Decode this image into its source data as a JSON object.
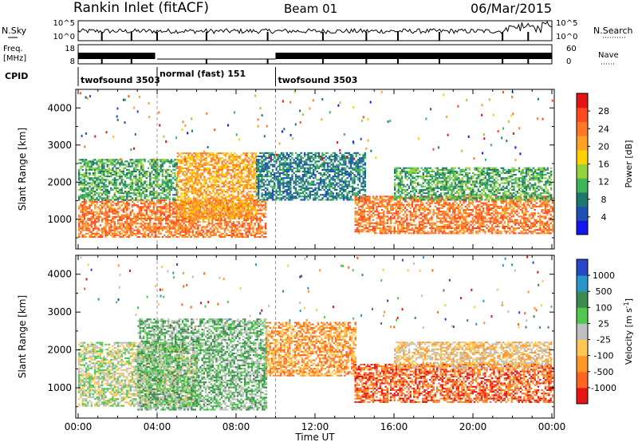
{
  "header": {
    "title": "Rankin Inlet (fitACF)",
    "beam": "Beam 01",
    "date": "06/Mar/2015"
  },
  "noise_panel": {
    "left_label": "N.Sky",
    "right_label": "N.Search",
    "left_ticks": [
      "10^5",
      "10^0"
    ],
    "right_ticks": [
      "10^5",
      "10^0"
    ]
  },
  "freq_panel": {
    "left_label_line1": "Freq.",
    "left_label_line2": "[MHz]",
    "right_label": "Nave",
    "left_ticks": [
      "18",
      "8"
    ],
    "right_ticks": [
      "60",
      "0"
    ]
  },
  "cpid_panel": {
    "label": "CPID",
    "segments": [
      {
        "name": "twofsound 3503",
        "start_hour": 0.0,
        "end_hour": 4.0
      },
      {
        "name": "normal (fast) 151",
        "start_hour": 4.0,
        "end_hour": 10.0
      },
      {
        "name": "twofsound 3503",
        "start_hour": 10.0,
        "end_hour": 24.0
      }
    ]
  },
  "chart_data": [
    {
      "type": "heatmap",
      "name": "power",
      "ylabel": "Slant Range [km]",
      "xlabel": "",
      "x_range_hours": [
        0,
        24
      ],
      "ylim": [
        200,
        4500
      ],
      "yticks": [
        1000,
        2000,
        3000,
        4000
      ],
      "colorbar": {
        "label": "Power [dB]",
        "ticks": [
          4,
          8,
          12,
          16,
          20,
          24,
          28
        ],
        "range": [
          0,
          32
        ],
        "colors": [
          "#1414f0",
          "#1e50b4",
          "#1e7870",
          "#3cb45a",
          "#96d23c",
          "#ffd200",
          "#ffa028",
          "#ff7828",
          "#ff4a1e",
          "#e61414"
        ]
      },
      "regions": [
        {
          "t0": 0.0,
          "t1": 9.5,
          "r0": 500,
          "r1": 1500,
          "level": 24
        },
        {
          "t0": 0.0,
          "t1": 5.0,
          "r0": 1500,
          "r1": 2600,
          "level": 12
        },
        {
          "t0": 5.0,
          "t1": 9.0,
          "r0": 1000,
          "r1": 2800,
          "level": 20
        },
        {
          "t0": 9.0,
          "t1": 14.5,
          "r0": 1500,
          "r1": 2800,
          "level": 8
        },
        {
          "t0": 14.0,
          "t1": 24.0,
          "r0": 600,
          "r1": 1600,
          "level": 24
        },
        {
          "t0": 16.0,
          "t1": 24.0,
          "r0": 1500,
          "r1": 2400,
          "level": 12
        }
      ]
    },
    {
      "type": "heatmap",
      "name": "velocity",
      "ylabel": "Slant Range [km]",
      "xlabel": "Time UT",
      "xticks": [
        "00:00",
        "04:00",
        "08:00",
        "12:00",
        "16:00",
        "20:00",
        "00:00"
      ],
      "x_range_hours": [
        0,
        24
      ],
      "ylim": [
        200,
        4500
      ],
      "yticks": [
        1000,
        2000,
        3000,
        4000
      ],
      "colorbar": {
        "label": "Velocity [m s^-1]",
        "ticks": [
          "1000",
          "500",
          "100",
          "25",
          "-25",
          "-100",
          "-500",
          "-1000"
        ],
        "colors": [
          "#2846c8",
          "#2896c8",
          "#3c8c50",
          "#50c850",
          "#c0c0c0",
          "#ffc850",
          "#ff9628",
          "#ff6420",
          "#e61414"
        ]
      },
      "regions": [
        {
          "t0": 0.0,
          "t1": 6.0,
          "r0": 500,
          "r1": 2200,
          "level": "25"
        },
        {
          "t0": 3.0,
          "t1": 9.5,
          "r0": 400,
          "r1": 2800,
          "level": "100"
        },
        {
          "t0": 9.5,
          "t1": 14.0,
          "r0": 1300,
          "r1": 2700,
          "level": "-100"
        },
        {
          "t0": 14.0,
          "t1": 24.0,
          "r0": 600,
          "r1": 1600,
          "level": "-500"
        },
        {
          "t0": 16.0,
          "t1": 24.0,
          "r0": 1500,
          "r1": 2200,
          "level": "-25"
        }
      ]
    }
  ]
}
